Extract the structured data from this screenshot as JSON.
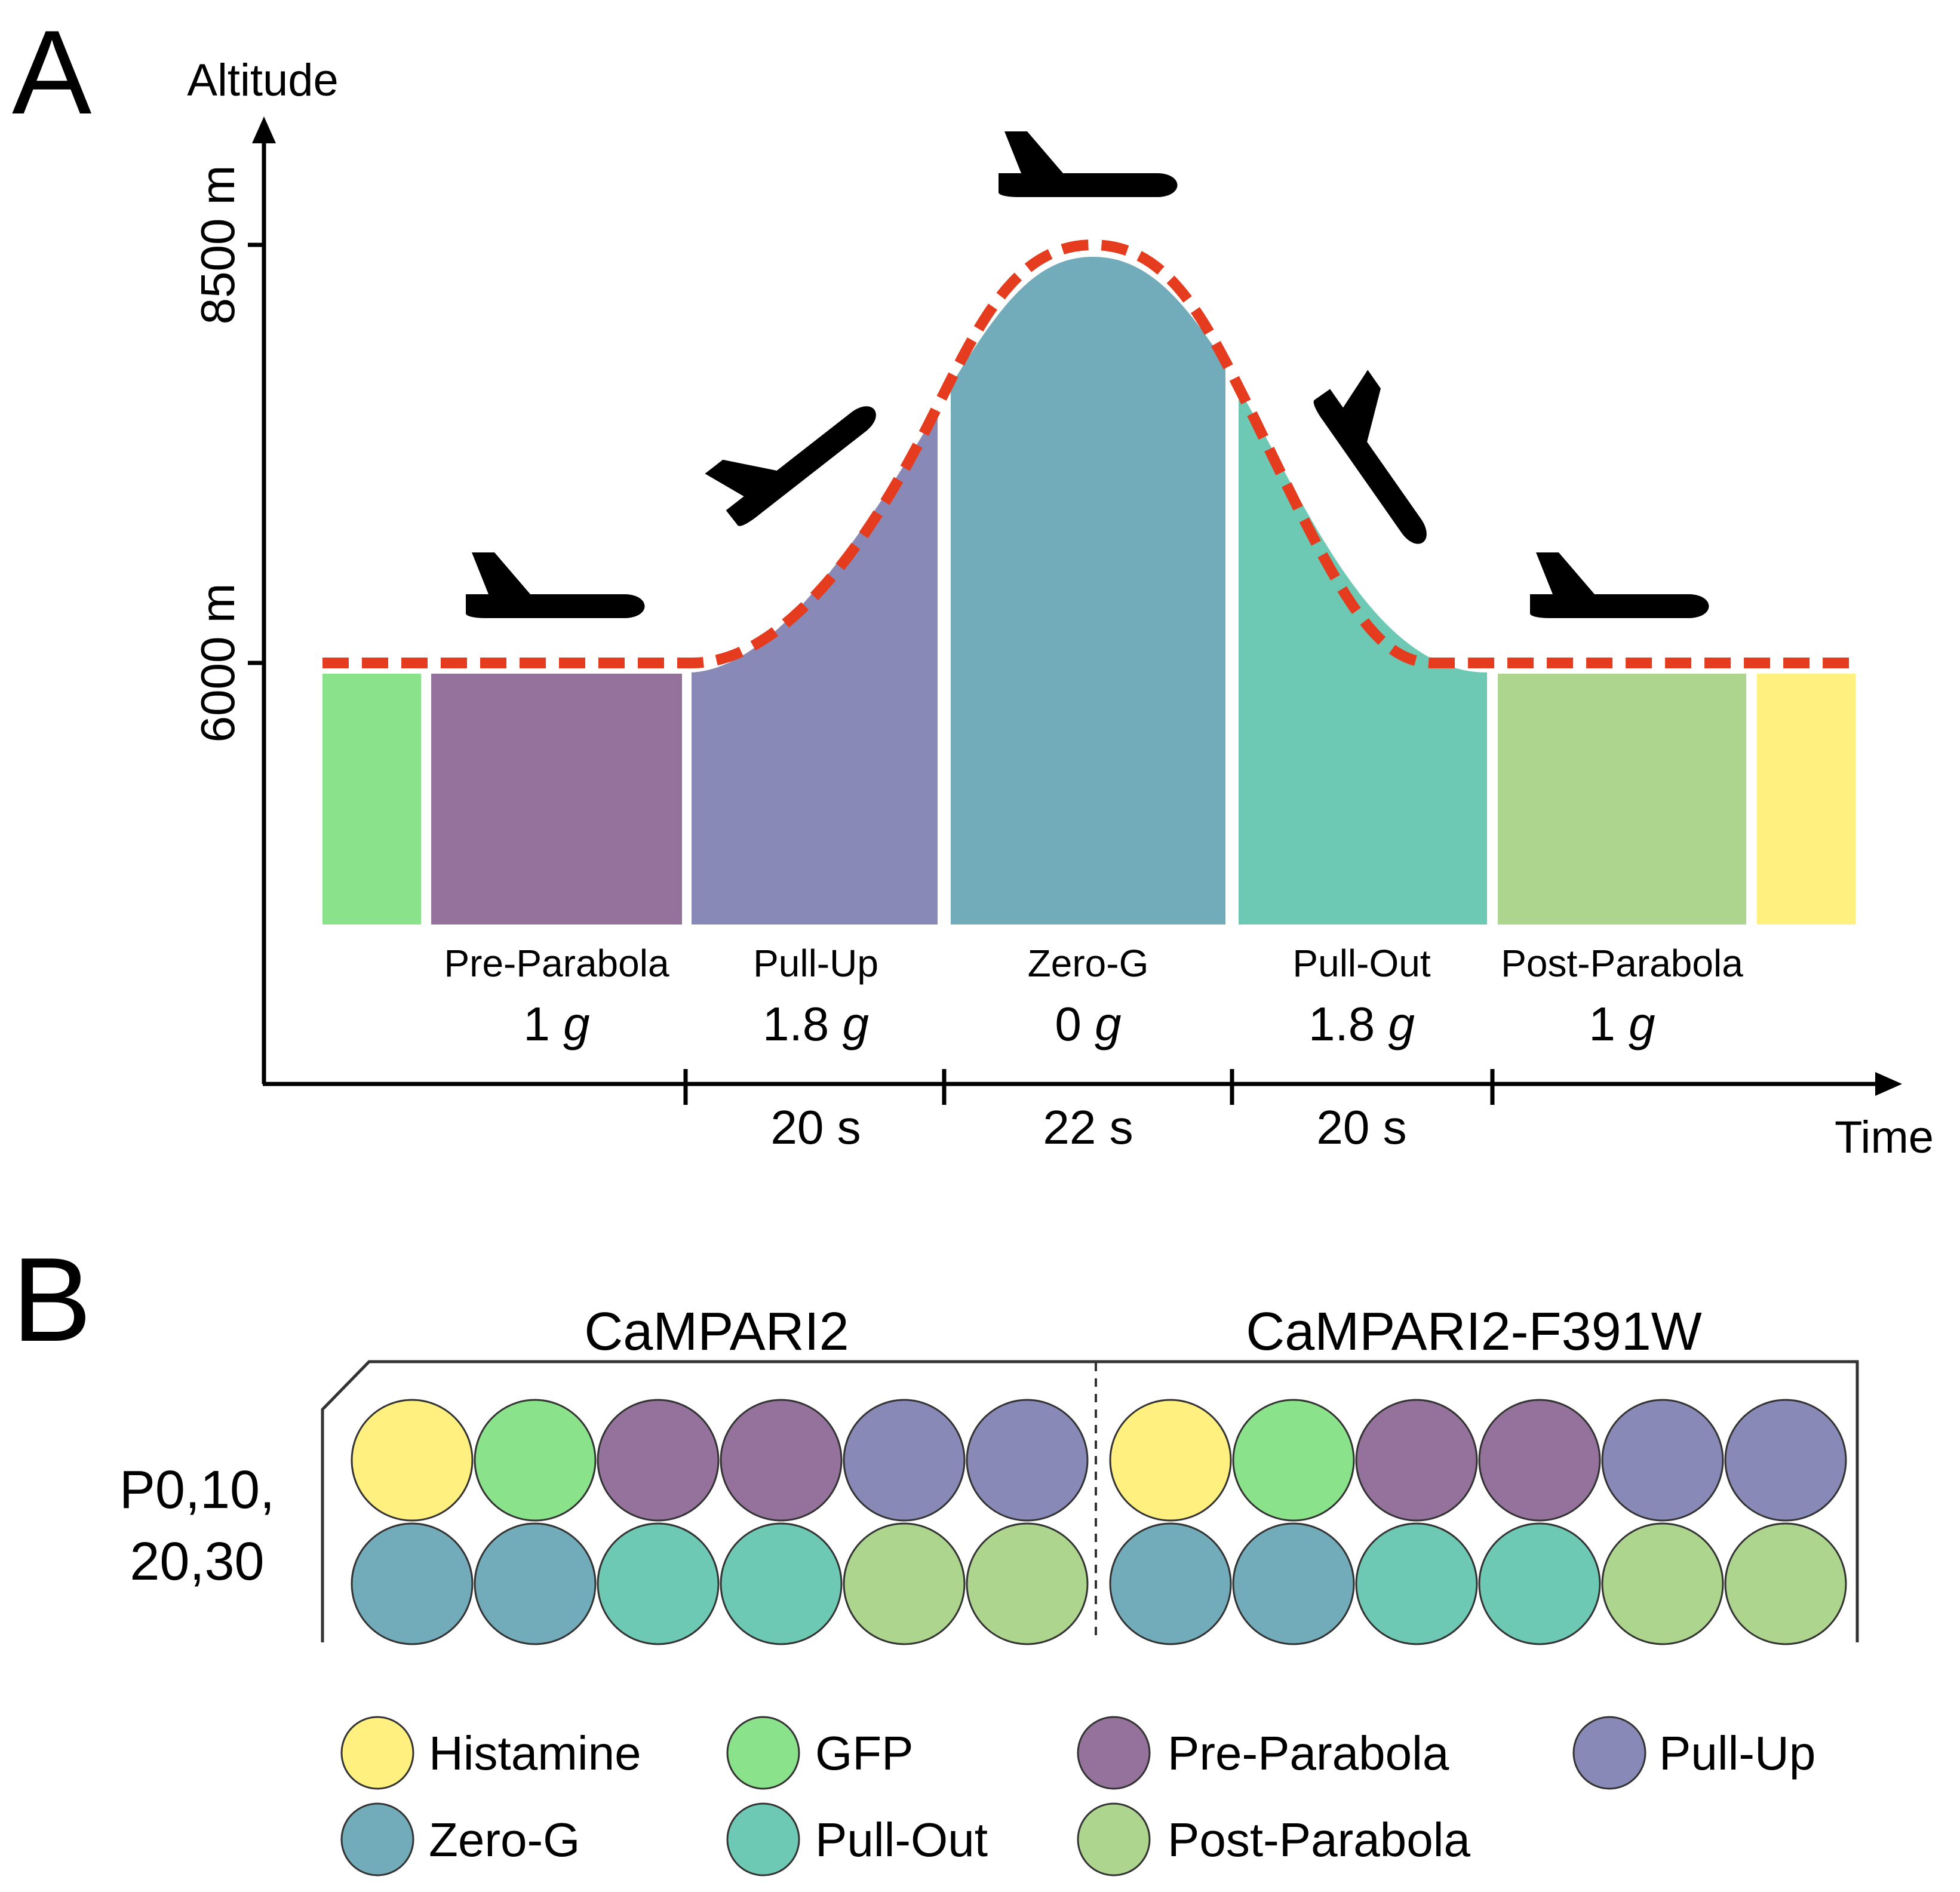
{
  "panelA": {
    "letter": "A",
    "y_axis_title": "Altitude",
    "x_axis_title": "Time",
    "y_ticks": [
      "8500 m",
      "6000 m"
    ],
    "phases": [
      {
        "key": "histamine",
        "color": "#8ae28a"
      },
      {
        "key": "pre",
        "name": "Pre-Parabola",
        "g_value": "1",
        "g_unit": "g",
        "color": "#94729b"
      },
      {
        "key": "pullup",
        "name": "Pull-Up",
        "g_value": "1.8",
        "g_unit": "g",
        "color": "#8889b6"
      },
      {
        "key": "zerog",
        "name": "Zero-G",
        "g_value": "0",
        "g_unit": "g",
        "color": "#72abb9"
      },
      {
        "key": "pullout",
        "name": "Pull-Out",
        "g_value": "1.8",
        "g_unit": "g",
        "color": "#6dc9b4"
      },
      {
        "key": "post",
        "name": "Post-Parabola",
        "g_value": "1",
        "g_unit": "g",
        "color": "#aed58e"
      },
      {
        "key": "end",
        "color": "#fff07f"
      }
    ],
    "durations": [
      "20 s",
      "22 s",
      "20 s"
    ],
    "trajectory_color": "#e53b1e",
    "plane_icons": [
      "airplane-icon-pre-parabola",
      "airplane-icon-pull-up",
      "airplane-icon-zero-g",
      "airplane-icon-pull-out",
      "airplane-icon-post-parabola"
    ]
  },
  "panelB": {
    "letter": "B",
    "groups": [
      "CaMPARI2",
      "CaMPARI2-F391W"
    ],
    "row_label_line1": "P0,10,",
    "row_label_line2": "20,30",
    "row1": [
      "histamine",
      "gfp",
      "pre",
      "pre",
      "pullup",
      "pullup"
    ],
    "row2": [
      "zerog",
      "zerog",
      "pullout",
      "pullout",
      "post",
      "post"
    ],
    "colors": {
      "histamine": "#fff07f",
      "gfp": "#8ae28a",
      "pre": "#94729b",
      "pullup": "#8889b6",
      "zerog": "#72abb9",
      "pullout": "#6dc9b4",
      "post": "#aed58e"
    },
    "legend": [
      {
        "key": "histamine",
        "label": "Histamine"
      },
      {
        "key": "gfp",
        "label": "GFP"
      },
      {
        "key": "pre",
        "label": "Pre-Parabola"
      },
      {
        "key": "pullup",
        "label": "Pull-Up"
      },
      {
        "key": "zerog",
        "label": "Zero-G"
      },
      {
        "key": "pullout",
        "label": "Pull-Out"
      },
      {
        "key": "post",
        "label": "Post-Parabola"
      }
    ]
  }
}
